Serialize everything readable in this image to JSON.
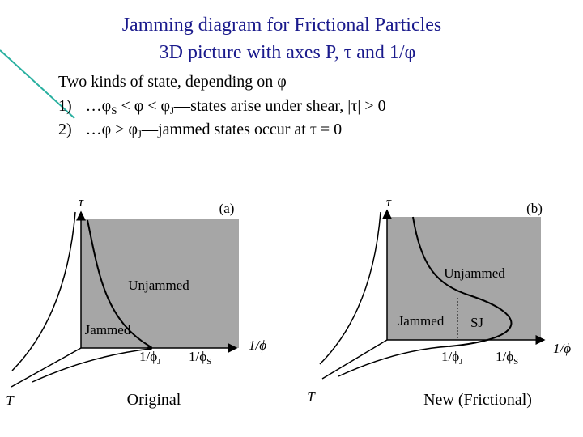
{
  "title": {
    "line1": "Jamming diagram for Frictional Particles",
    "line2": "3D picture with axes P, τ and 1/φ"
  },
  "intro": "Two kinds of state, depending on φ",
  "items": [
    {
      "number": "1)",
      "parts": [
        "…φ",
        "S",
        " < φ < φ",
        "J",
        "—states arise under shear, |τ| > 0"
      ]
    },
    {
      "number": "2)",
      "parts": [
        "…φ > φ",
        "J",
        "—jammed states occur at τ = 0"
      ]
    }
  ],
  "diagrams": [
    {
      "panel": "(a)",
      "tau": "τ",
      "temperature": "T",
      "inverse_phi": "1/ϕ",
      "unjammed": "Unjammed",
      "jammed": "Jammed",
      "tick_j": {
        "text": "1/ϕ",
        "sub": "J"
      },
      "tick_s": {
        "text": "1/ϕ",
        "sub": "S"
      },
      "caption": "Original"
    },
    {
      "panel": "(b)",
      "tau": "τ",
      "temperature": "T",
      "inverse_phi": "1/ϕ",
      "unjammed": "Unjammed",
      "jammed": "Jammed",
      "sj": "SJ",
      "tick_j": {
        "text": "1/ϕ",
        "sub": "J"
      },
      "tick_s": {
        "text": "1/ϕ",
        "sub": "S"
      },
      "caption": "New (Frictional)"
    }
  ]
}
